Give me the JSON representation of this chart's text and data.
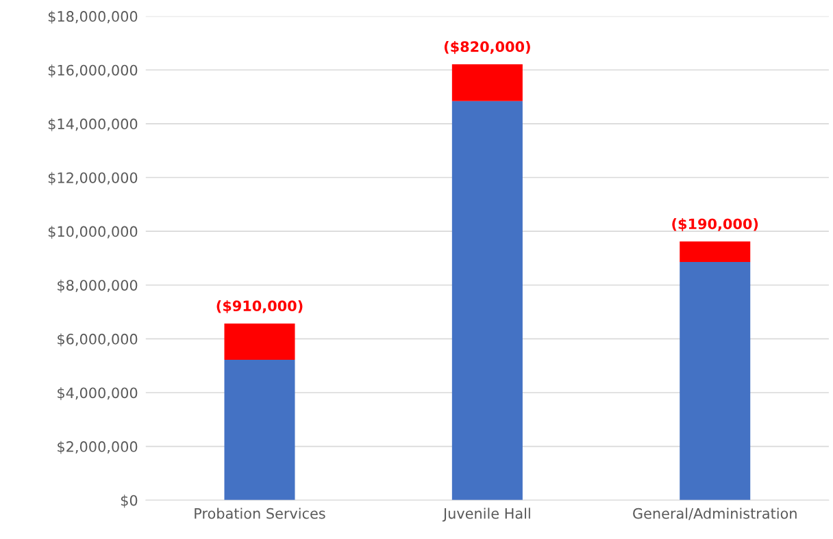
{
  "chart_data": {
    "type": "bar",
    "categories": [
      "Probation Services",
      "Juvenile Hall",
      "General/Administration"
    ],
    "series": [
      {
        "color": "#4472c4",
        "values": [
          5220000,
          14840000,
          8860000
        ]
      },
      {
        "color": "#ff0000",
        "values": [
          1350000,
          1370000,
          760000
        ]
      }
    ],
    "stacked": true,
    "ylim": [
      0,
      18000000
    ],
    "yticks": [
      {
        "value": 0,
        "label": "$0"
      },
      {
        "value": 2000000,
        "label": "$2,000,000"
      },
      {
        "value": 4000000,
        "label": "$4,000,000"
      },
      {
        "value": 6000000,
        "label": "$6,000,000"
      },
      {
        "value": 8000000,
        "label": "$8,000,000"
      },
      {
        "value": 10000000,
        "label": "$10,000,000"
      },
      {
        "value": 12000000,
        "label": "$12,000,000"
      },
      {
        "value": 14000000,
        "label": "$14,000,000"
      },
      {
        "value": 16000000,
        "label": "$16,000,000"
      },
      {
        "value": 18000000,
        "label": "$18,000,000"
      }
    ],
    "grid": "y",
    "annotations": [
      {
        "text": "($910,000)",
        "x": "Probation Services",
        "y": 6570000
      },
      {
        "text": "($820,000)",
        "x": "Juvenile Hall",
        "y": 16210000
      },
      {
        "text": "($190,000)",
        "x": "General/Administration",
        "y": 9620000
      }
    ]
  }
}
